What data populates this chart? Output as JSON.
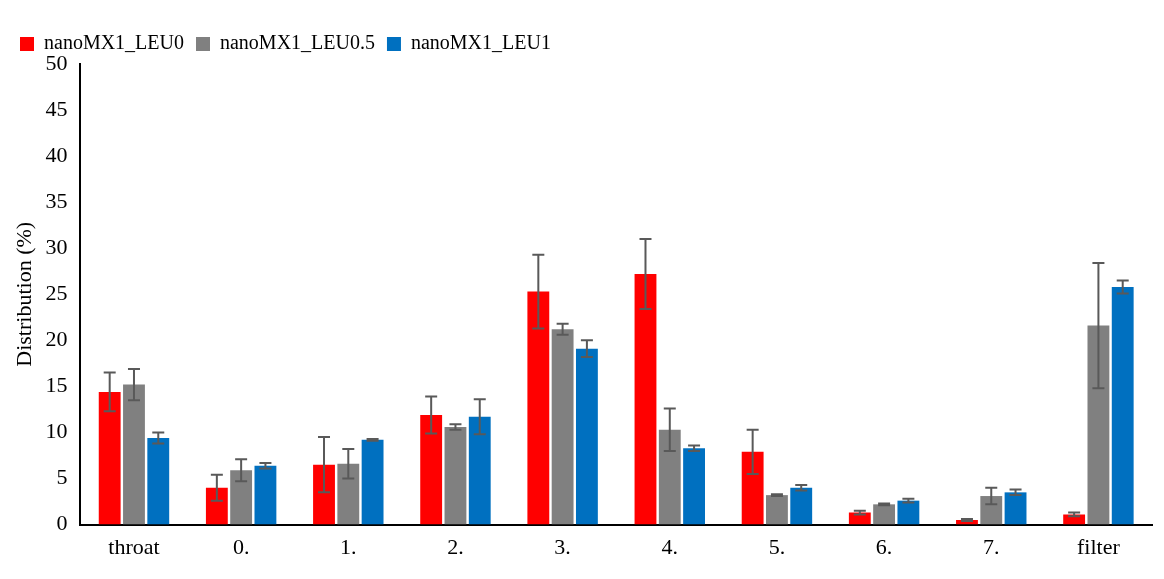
{
  "chart_data": {
    "type": "bar",
    "ylabel": "Distribution (%)",
    "categories": [
      "throat",
      "0.",
      "1.",
      "2.",
      "3.",
      "4.",
      "5.",
      "6.",
      "7.",
      "filter"
    ],
    "series": [
      {
        "name": "nanoMX1_LEU0",
        "color": "#ff0000",
        "values": [
          14.4,
          4.0,
          6.5,
          11.9,
          25.3,
          27.2,
          7.9,
          1.3,
          0.5,
          1.1
        ],
        "errors": [
          2.1,
          1.4,
          3.0,
          2.0,
          4.0,
          3.8,
          2.4,
          0.2,
          0.1,
          0.2
        ]
      },
      {
        "name": "nanoMX1_LEU0.5",
        "color": "#808080",
        "values": [
          15.2,
          5.9,
          6.6,
          10.6,
          21.2,
          10.3,
          3.2,
          2.2,
          3.1,
          21.6
        ],
        "errors": [
          1.7,
          1.2,
          1.6,
          0.3,
          0.6,
          2.3,
          0.1,
          0.1,
          0.9,
          6.8
        ]
      },
      {
        "name": "nanoMX1_LEU1",
        "color": "#0070c0",
        "values": [
          9.4,
          6.4,
          9.2,
          11.7,
          19.1,
          8.3,
          4.0,
          2.6,
          3.5,
          25.8
        ],
        "errors": [
          0.6,
          0.3,
          0.1,
          1.9,
          0.9,
          0.3,
          0.3,
          0.2,
          0.3,
          0.7
        ]
      }
    ],
    "ylim": [
      0,
      50
    ],
    "yticks": [
      0,
      5,
      10,
      15,
      20,
      25,
      30,
      35,
      40,
      45,
      50
    ],
    "grid": false,
    "legend": "top left"
  }
}
